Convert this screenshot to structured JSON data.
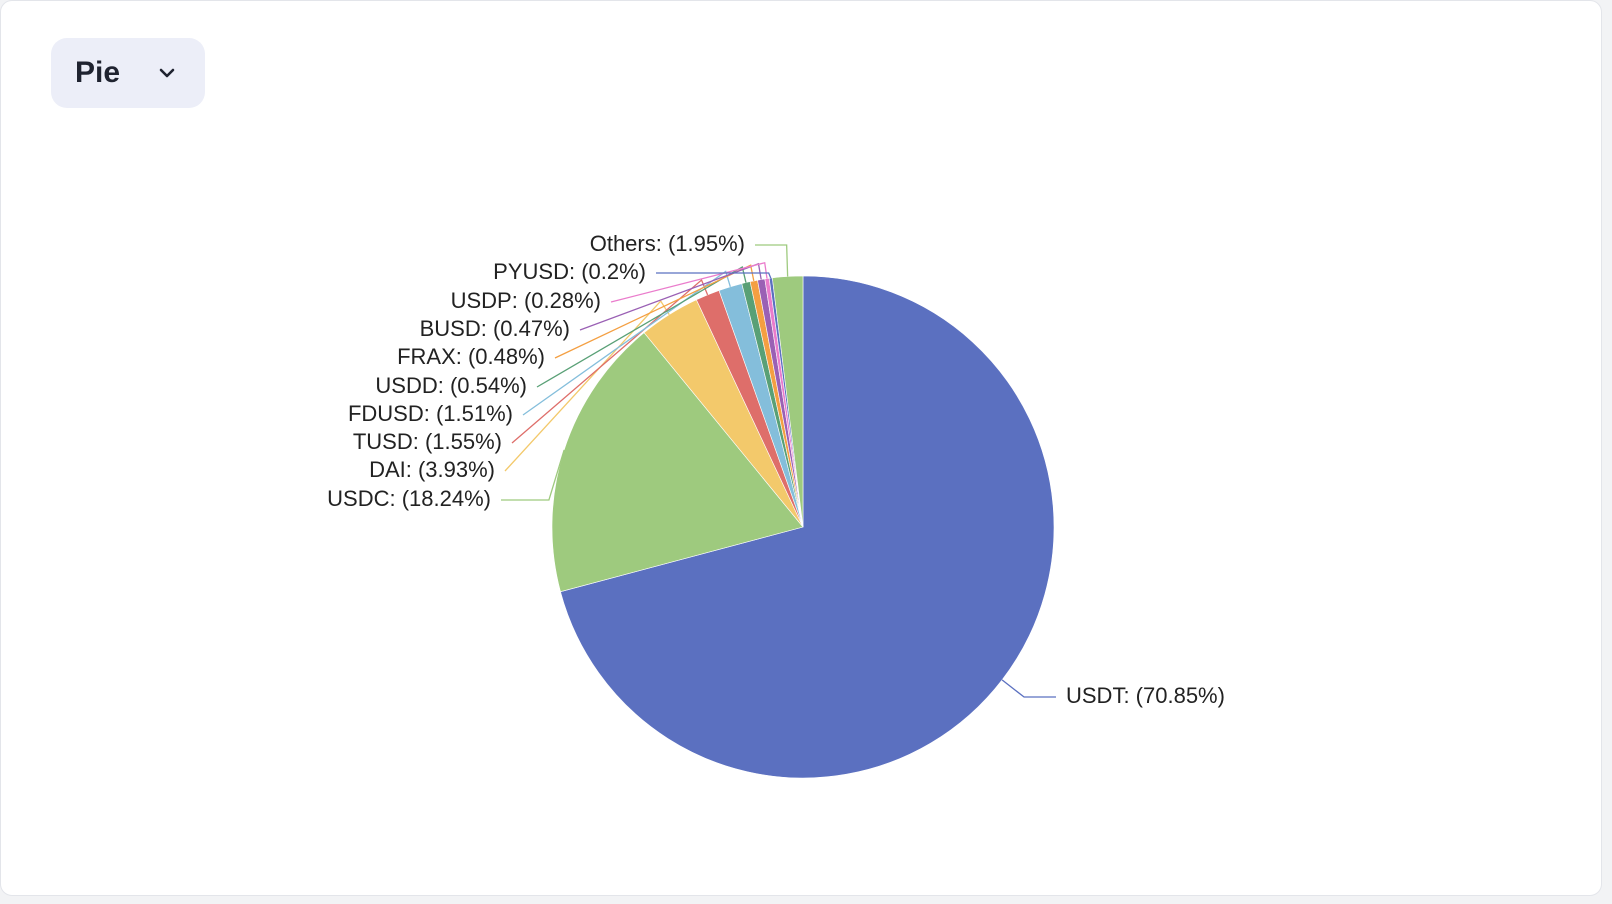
{
  "controls": {
    "chart_type_label": "Pie",
    "chevron_icon": "chevron-down-icon"
  },
  "chart_data": {
    "type": "pie",
    "title": "",
    "label_format": "{name}: ({percent}%)",
    "slices": [
      {
        "name": "USDT",
        "value": 70.85,
        "label": "USDT: (70.85%)",
        "color": "#5b70c0"
      },
      {
        "name": "USDC",
        "value": 18.24,
        "label": "USDC: (18.24%)",
        "color": "#9eca7e"
      },
      {
        "name": "DAI",
        "value": 3.93,
        "label": "DAI: (3.93%)",
        "color": "#f3c96b"
      },
      {
        "name": "TUSD",
        "value": 1.55,
        "label": "TUSD: (1.55%)",
        "color": "#de6e6a"
      },
      {
        "name": "FDUSD",
        "value": 1.51,
        "label": "FDUSD: (1.51%)",
        "color": "#84bedb"
      },
      {
        "name": "USDD",
        "value": 0.54,
        "label": "USDD: (0.54%)",
        "color": "#59a076"
      },
      {
        "name": "FRAX",
        "value": 0.48,
        "label": "FRAX: (0.48%)",
        "color": "#f49f42"
      },
      {
        "name": "BUSD",
        "value": 0.47,
        "label": "BUSD: (0.47%)",
        "color": "#9a60b4"
      },
      {
        "name": "USDP",
        "value": 0.28,
        "label": "USDP: (0.28%)",
        "color": "#ea7ccc"
      },
      {
        "name": "PYUSD",
        "value": 0.2,
        "label": "PYUSD: (0.2%)",
        "color": "#5b70c0"
      },
      {
        "name": "Others",
        "value": 1.95,
        "label": "Others: (1.95%)",
        "color": "#9eca7e"
      }
    ]
  }
}
